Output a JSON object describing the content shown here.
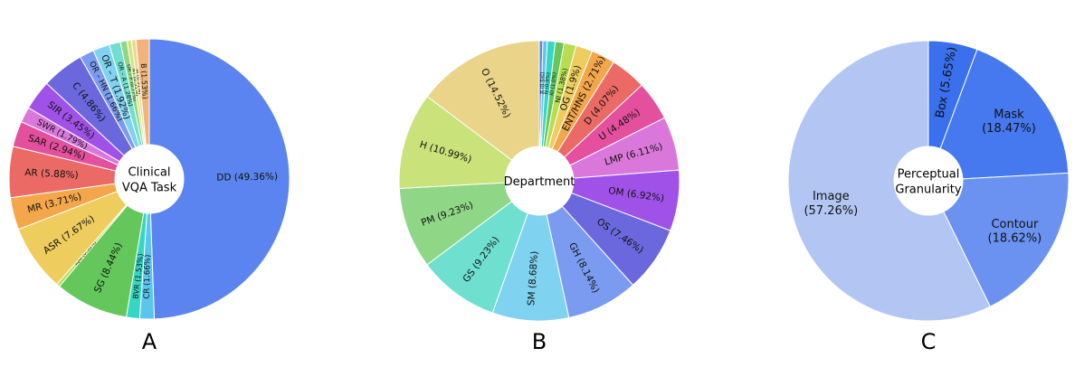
{
  "chart_data": [
    {
      "type": "pie",
      "variant": "donut",
      "panel_label": "A",
      "center_label": [
        "Clinical",
        "VQA Task"
      ],
      "start": "top",
      "direction": "clockwise",
      "label_orientation": "radial",
      "slices": [
        {
          "label": "DD (49.36%)",
          "value": 49.36,
          "color": "#5b84f0"
        },
        {
          "label": "CR (1.66%)",
          "value": 1.66,
          "color": "#5ac6ee"
        },
        {
          "label": "BVR (1.53%)",
          "value": 1.53,
          "color": "#36d6c4"
        },
        {
          "label": "SG (8.44%)",
          "value": 8.44,
          "color": "#63c75c"
        },
        {
          "label": "IQG (0.38%)",
          "value": 0.38,
          "color": "#b8dd50"
        },
        {
          "label": "ASR (7.67%)",
          "value": 7.67,
          "color": "#eecc5e"
        },
        {
          "label": "MR (3.71%)",
          "value": 3.71,
          "color": "#f4a64a"
        },
        {
          "label": "AR (5.88%)",
          "value": 5.88,
          "color": "#ec6a65"
        },
        {
          "label": "SAR (2.94%)",
          "value": 2.94,
          "color": "#e44f9e"
        },
        {
          "label": "SWR (1.79%)",
          "value": 1.79,
          "color": "#d978da"
        },
        {
          "label": "SIR (3.45%)",
          "value": 3.45,
          "color": "#a052e8"
        },
        {
          "label": "C (4.86%)",
          "value": 4.86,
          "color": "#6b68de"
        },
        {
          "label": "OR – HN (1.66%)",
          "value": 1.66,
          "color": "#7a9bf0"
        },
        {
          "label": "OR – T (1.92%)",
          "value": 1.92,
          "color": "#7fd2f0"
        },
        {
          "label": "OR – A (1.28%)",
          "value": 1.28,
          "color": "#6fdfcf"
        },
        {
          "label": "OR – P (0.77%)",
          "value": 0.77,
          "color": "#8fd787"
        },
        {
          "label": "NT (0.51%)",
          "value": 0.51,
          "color": "#d2e47c"
        },
        {
          "label": "M (0.51%)",
          "value": 0.51,
          "color": "#ecd894"
        },
        {
          "label": "B (1.53%)",
          "value": 1.53,
          "color": "#f1b379"
        }
      ]
    },
    {
      "type": "pie",
      "variant": "donut",
      "panel_label": "B",
      "center_label": [
        "Department"
      ],
      "start": "top",
      "direction": "clockwise",
      "label_orientation": "radial",
      "slices": [
        {
          "label": "D (0.4%)",
          "value": 0.4,
          "color": "#5b84f0"
        },
        {
          "label": "R (0.5%)",
          "value": 0.5,
          "color": "#5ac6ee"
        },
        {
          "label": "N (0.9%)",
          "value": 0.9,
          "color": "#36d6c4"
        },
        {
          "label": "ID (1.0%)",
          "value": 1.0,
          "color": "#63c75c"
        },
        {
          "label": "NI (1.38%)",
          "value": 1.38,
          "color": "#b8dd50"
        },
        {
          "label": "OG (1.9%)",
          "value": 1.9,
          "color": "#eecc5e"
        },
        {
          "label": "ENT/HNS (2.71%)",
          "value": 2.71,
          "color": "#f4a64a"
        },
        {
          "label": "D (4.07%)",
          "value": 4.07,
          "color": "#ec6a65"
        },
        {
          "label": "U (4.48%)",
          "value": 4.48,
          "color": "#e44f9e"
        },
        {
          "label": "LMP (6.11%)",
          "value": 6.11,
          "color": "#d978da"
        },
        {
          "label": "OM (6.92%)",
          "value": 6.92,
          "color": "#a052e8"
        },
        {
          "label": "OS (7.46%)",
          "value": 7.46,
          "color": "#6b68de"
        },
        {
          "label": "GH (8.14%)",
          "value": 8.14,
          "color": "#7a9bf0"
        },
        {
          "label": "SM (8.68%)",
          "value": 8.68,
          "color": "#7fd2f0"
        },
        {
          "label": "GS (9.23%)",
          "value": 9.23,
          "color": "#6fdfcf"
        },
        {
          "label": "PM (9.23%)",
          "value": 9.23,
          "color": "#8fd787"
        },
        {
          "label": "H (10.99%)",
          "value": 10.99,
          "color": "#c9e27a"
        },
        {
          "label": "O (14.52%)",
          "value": 14.52,
          "color": "#e9d48a"
        }
      ]
    },
    {
      "type": "pie",
      "variant": "donut",
      "panel_label": "C",
      "center_label": [
        "Perceptual",
        "Granularity"
      ],
      "start": "top",
      "direction": "clockwise",
      "label_orientation": "radial-top",
      "slices": [
        {
          "label": "Box (5.65%)",
          "value": 5.65,
          "color": "#3a6fee"
        },
        {
          "label": "Mask\n(18.47%)",
          "value": 18.47,
          "color": "#4678ef"
        },
        {
          "label": "Contour\n(18.62%)",
          "value": 18.62,
          "color": "#6b92f0"
        },
        {
          "label": "Image\n(57.26%)",
          "value": 57.26,
          "color": "#b3c6f3"
        }
      ]
    }
  ]
}
